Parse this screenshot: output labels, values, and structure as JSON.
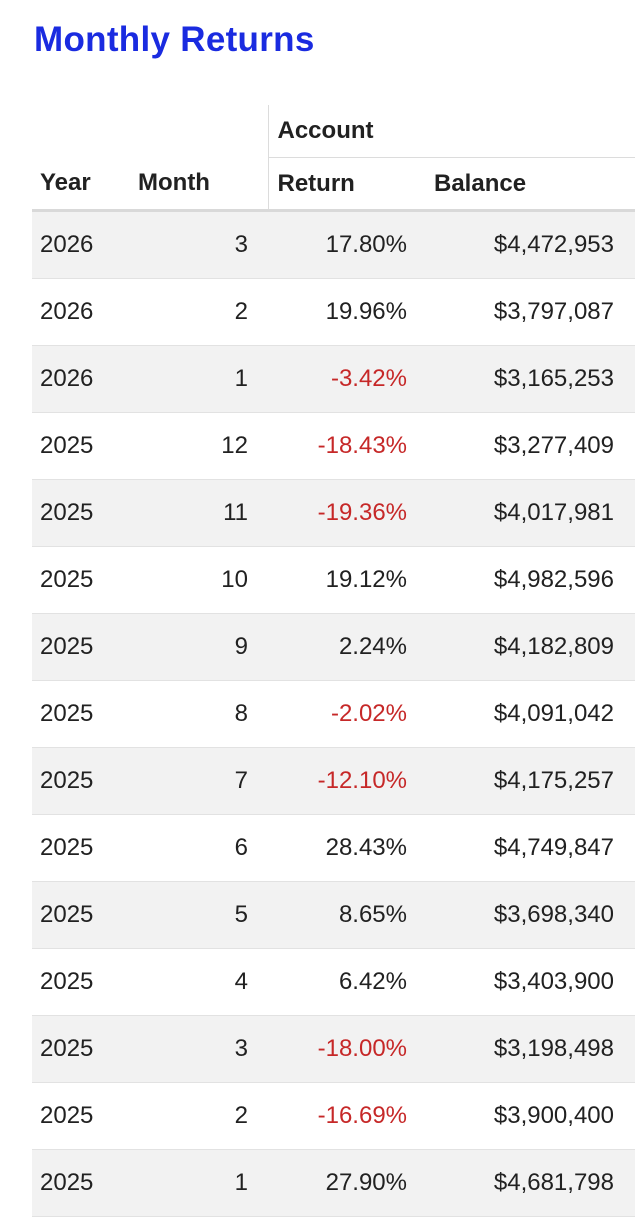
{
  "title": "Monthly Returns",
  "table": {
    "group_header": "Account",
    "columns": [
      "Year",
      "Month",
      "Return",
      "Balance"
    ],
    "rows": [
      [
        "2026",
        "3",
        "17.80%",
        "$4,472,953"
      ],
      [
        "2026",
        "2",
        "19.96%",
        "$3,797,087"
      ],
      [
        "2026",
        "1",
        "-3.42%",
        "$3,165,253"
      ],
      [
        "2025",
        "12",
        "-18.43%",
        "$3,277,409"
      ],
      [
        "2025",
        "11",
        "-19.36%",
        "$4,017,981"
      ],
      [
        "2025",
        "10",
        "19.12%",
        "$4,982,596"
      ],
      [
        "2025",
        "9",
        "2.24%",
        "$4,182,809"
      ],
      [
        "2025",
        "8",
        "-2.02%",
        "$4,091,042"
      ],
      [
        "2025",
        "7",
        "-12.10%",
        "$4,175,257"
      ],
      [
        "2025",
        "6",
        "28.43%",
        "$4,749,847"
      ],
      [
        "2025",
        "5",
        "8.65%",
        "$3,698,340"
      ],
      [
        "2025",
        "4",
        "6.42%",
        "$3,403,900"
      ],
      [
        "2025",
        "3",
        "-18.00%",
        "$3,198,498"
      ],
      [
        "2025",
        "2",
        "-16.69%",
        "$3,900,400"
      ],
      [
        "2025",
        "1",
        "27.90%",
        "$4,681,798"
      ]
    ]
  }
}
